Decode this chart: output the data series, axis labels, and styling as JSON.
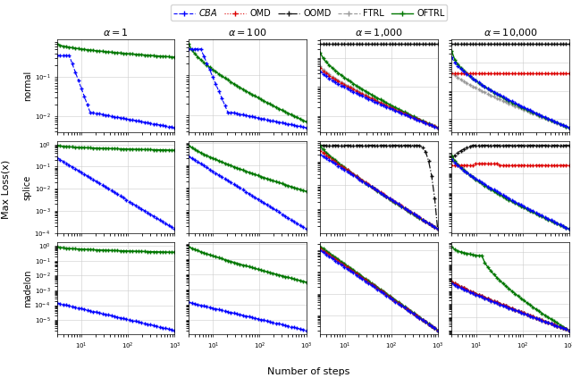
{
  "rows": [
    "normal",
    "splice",
    "madelon"
  ],
  "col_titles": [
    "$\\alpha = 1$",
    "$\\alpha = 100$",
    "$\\alpha = 1{,}000$",
    "$\\alpha = 10{,}000$"
  ],
  "xlabel": "Number of steps",
  "ylabel": "Max Loss(x)",
  "colors": {
    "CBA": "#0000ff",
    "OMD": "#dd0000",
    "OOMD": "#111111",
    "FTRL": "#999999",
    "OFTRL": "#007700"
  },
  "x_min": 3,
  "x_max": 1000,
  "n_pts": 40
}
